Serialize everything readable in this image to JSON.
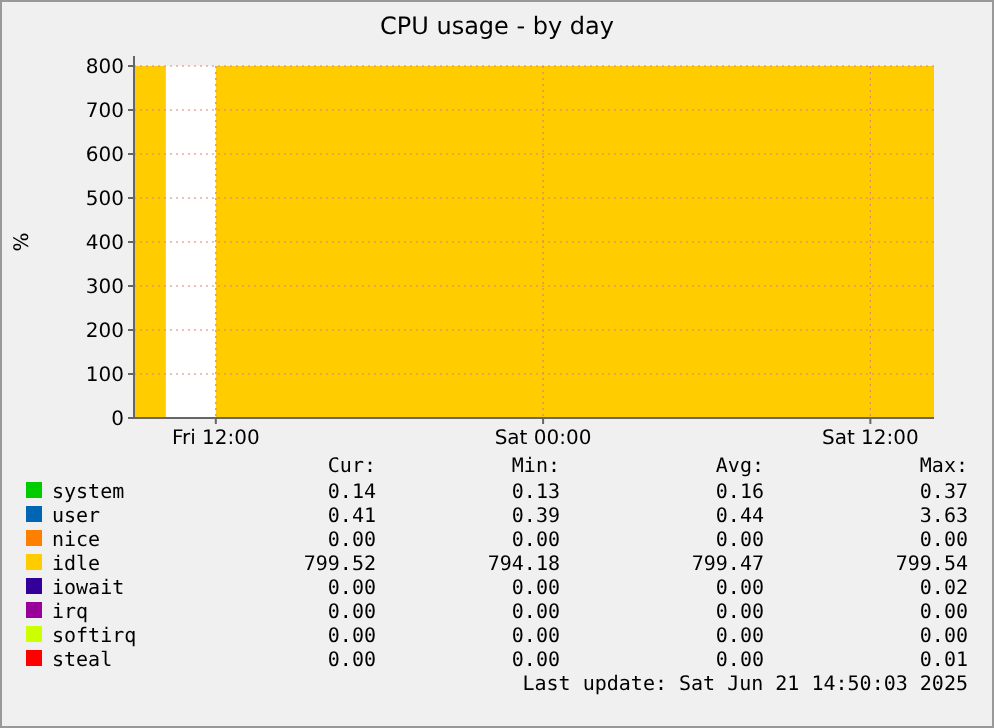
{
  "chart_data": {
    "type": "area",
    "title": "CPU usage - by day",
    "ylabel": "%",
    "x": [
      "2025-06-20T09:00",
      "2025-06-20T10:10",
      "2025-06-20T10:15",
      "2025-06-20T12:00",
      "2025-06-21T14:20"
    ],
    "xlim": [
      "2025-06-20T09:00",
      "2025-06-21T14:20"
    ],
    "xticks": [
      {
        "value": "2025-06-20T12:00",
        "label": "Fri 12:00"
      },
      {
        "value": "2025-06-21T00:00",
        "label": "Sat 00:00"
      },
      {
        "value": "2025-06-21T12:00",
        "label": "Sat 12:00"
      }
    ],
    "ylim": [
      0,
      800
    ],
    "yticks": [
      0,
      100,
      200,
      300,
      400,
      500,
      600,
      700,
      800
    ],
    "grid": true,
    "legend": "bottom",
    "series": [
      {
        "name": "system",
        "color": "#00cc00",
        "values": [
          null,
          null,
          null,
          null,
          null
        ]
      },
      {
        "name": "user",
        "color": "#0066b3",
        "values": [
          null,
          null,
          null,
          null,
          null
        ]
      },
      {
        "name": "nice",
        "color": "#ff8000",
        "values": [
          null,
          null,
          null,
          null,
          null
        ]
      },
      {
        "name": "idle",
        "color": "#ffcc00",
        "values": [
          800,
          800,
          null,
          800,
          800
        ]
      },
      {
        "name": "iowait",
        "color": "#330099",
        "values": [
          null,
          null,
          null,
          null,
          null
        ]
      },
      {
        "name": "irq",
        "color": "#990099",
        "values": [
          null,
          null,
          null,
          null,
          null
        ]
      },
      {
        "name": "softirq",
        "color": "#ccff00",
        "values": [
          null,
          null,
          null,
          null,
          null
        ]
      },
      {
        "name": "steal",
        "color": "#ff0000",
        "values": [
          null,
          null,
          null,
          null,
          null
        ]
      }
    ],
    "annotations": [
      "Cur:",
      "Min:",
      "Avg:",
      "Max:",
      "0.14",
      "0.13",
      "0.16",
      "0.37",
      "0.41",
      "0.39",
      "0.44",
      "3.63",
      "0.00",
      "0.00",
      "0.00",
      "0.00",
      "799.52",
      "794.18",
      "799.47",
      "799.54",
      "0.00",
      "0.00",
      "0.00",
      "0.02",
      "0.00",
      "0.00",
      "0.00",
      "0.00",
      "0.00",
      "0.00",
      "0.00",
      "0.00",
      "0.00",
      "0.00",
      "0.00",
      "0.01",
      "Last update: Sat Jun 21 14:50:03 2025"
    ]
  }
}
